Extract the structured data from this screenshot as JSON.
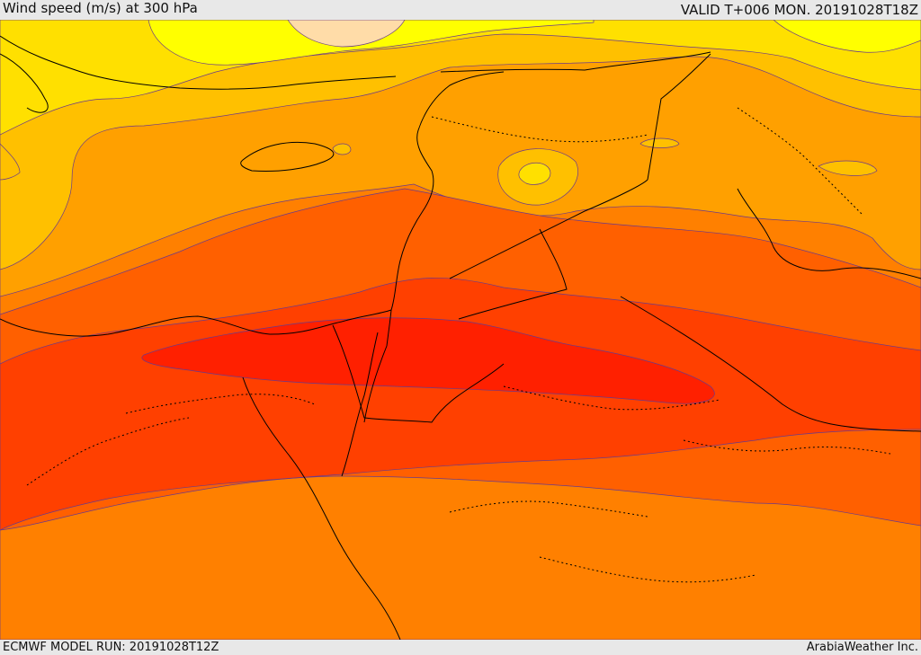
{
  "header": {
    "title": "Wind speed (m/s) at 300 hPa",
    "valid": "VALID T+006 MON. 20191028T18Z"
  },
  "footer": {
    "model_run": "ECMWF MODEL RUN: 20191028T12Z",
    "credit": "ArabiaWeather Inc."
  },
  "colors": {
    "band_1": "#ffff00",
    "band_2": "#ffe000",
    "band_3": "#ffc000",
    "band_4": "#ffa000",
    "band_5": "#ff8000",
    "band_6": "#ff6000",
    "band_7": "#ff4000",
    "band_8": "#ff2000",
    "peak_spot": "#ffdca8",
    "contour_line": "#6a3a8a",
    "border_line": "#000000"
  }
}
